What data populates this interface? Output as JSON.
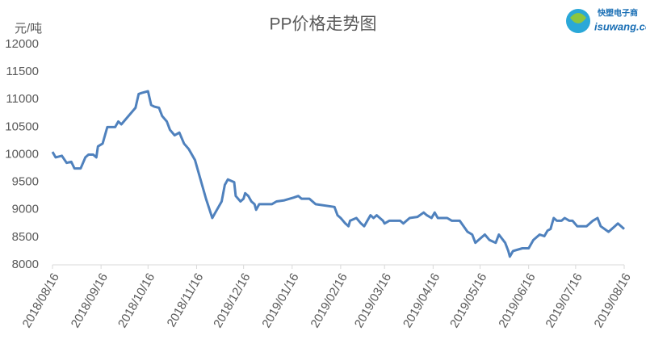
{
  "logo": {
    "name": "快塑电子商",
    "site": "isuwang.co"
  },
  "chart_data": {
    "type": "line",
    "title": "PP价格走势图",
    "y_label": "元/吨",
    "color": "#4f81bd",
    "x": [
      "2018/08/16",
      "2018/08/18",
      "2018/08/22",
      "2018/08/25",
      "2018/08/28",
      "2018/08/30",
      "2018/09/03",
      "2018/09/06",
      "2018/09/08",
      "2018/09/11",
      "2018/09/13",
      "2018/09/14",
      "2018/09/17",
      "2018/09/20",
      "2018/09/25",
      "2018/09/27",
      "2018/09/29",
      "2018/10/08",
      "2018/10/10",
      "2018/10/12",
      "2018/10/16",
      "2018/10/18",
      "2018/10/20",
      "2018/10/23",
      "2018/10/25",
      "2018/10/28",
      "2018/10/30",
      "2018/11/02",
      "2018/11/05",
      "2018/11/08",
      "2018/11/11",
      "2018/11/15",
      "2018/11/20",
      "2018/11/22",
      "2018/11/26",
      "2018/11/28",
      "2018/12/02",
      "2018/12/04",
      "2018/12/06",
      "2018/12/10",
      "2018/12/11",
      "2018/12/14",
      "2018/12/16",
      "2018/12/17",
      "2018/12/19",
      "2018/12/21",
      "2018/12/23",
      "2018/12/24",
      "2018/12/26",
      "2019/01/03",
      "2019/01/06",
      "2019/01/11",
      "2019/01/17",
      "2019/01/20",
      "2019/01/22",
      "2019/01/27",
      "2019/01/31",
      "2019/02/12",
      "2019/02/14",
      "2019/02/16",
      "2019/02/19",
      "2019/02/21",
      "2019/02/22",
      "2019/02/26",
      "2019/03/01",
      "2019/03/03",
      "2019/03/05",
      "2019/03/07",
      "2019/03/09",
      "2019/03/11",
      "2019/03/15",
      "2019/03/16",
      "2019/03/19",
      "2019/03/26",
      "2019/03/28",
      "2019/04/01",
      "2019/04/06",
      "2019/04/10",
      "2019/04/12",
      "2019/04/15",
      "2019/04/17",
      "2019/04/19",
      "2019/04/25",
      "2019/04/28",
      "2019/05/03",
      "2019/05/08",
      "2019/05/11",
      "2019/05/13",
      "2019/05/15",
      "2019/05/19",
      "2019/05/22",
      "2019/05/26",
      "2019/05/28",
      "2019/06/01",
      "2019/06/03",
      "2019/06/04",
      "2019/06/06",
      "2019/06/12",
      "2019/06/16",
      "2019/06/19",
      "2019/06/23",
      "2019/06/26",
      "2019/06/28",
      "2019/06/30",
      "2019/07/02",
      "2019/07/04",
      "2019/07/07",
      "2019/07/09",
      "2019/07/12",
      "2019/07/14",
      "2019/07/17",
      "2019/07/23",
      "2019/07/27",
      "2019/07/30",
      "2019/08/01",
      "2019/08/06",
      "2019/08/10",
      "2019/08/12",
      "2019/08/16"
    ],
    "values": [
      10050,
      9950,
      9980,
      9850,
      9870,
      9750,
      9750,
      9950,
      10000,
      10000,
      9950,
      10150,
      10200,
      10500,
      10500,
      10600,
      10550,
      10850,
      11100,
      11120,
      11150,
      10900,
      10870,
      10850,
      10700,
      10600,
      10450,
      10350,
      10400,
      10200,
      10100,
      9900,
      9400,
      9200,
      8850,
      8950,
      9150,
      9450,
      9550,
      9500,
      9250,
      9150,
      9200,
      9300,
      9250,
      9150,
      9100,
      9000,
      9100,
      9100,
      9150,
      9170,
      9220,
      9250,
      9200,
      9200,
      9100,
      9050,
      8900,
      8850,
      8750,
      8700,
      8800,
      8850,
      8750,
      8700,
      8800,
      8900,
      8850,
      8900,
      8800,
      8750,
      8800,
      8800,
      8750,
      8850,
      8870,
      8950,
      8900,
      8850,
      8950,
      8850,
      8850,
      8800,
      8800,
      8600,
      8550,
      8400,
      8450,
      8550,
      8450,
      8400,
      8550,
      8400,
      8250,
      8150,
      8250,
      8300,
      8300,
      8450,
      8550,
      8520,
      8620,
      8650,
      8850,
      8800,
      8800,
      8850,
      8800,
      8800,
      8700,
      8700,
      8800,
      8850,
      8700,
      8600,
      8700,
      8750,
      8650
    ],
    "xlim": [
      "2018/08/16",
      "2019/08/16"
    ],
    "xticks": [
      "2018/08/16",
      "2018/09/16",
      "2018/10/16",
      "2018/11/16",
      "2018/12/16",
      "2019/01/16",
      "2019/02/16",
      "2019/03/16",
      "2019/04/16",
      "2019/05/16",
      "2019/06/16",
      "2019/07/16",
      "2019/08/16"
    ],
    "ylim": [
      8000,
      12000
    ],
    "yticks": [
      8000,
      8500,
      9000,
      9500,
      10000,
      10500,
      11000,
      11500,
      12000
    ]
  }
}
